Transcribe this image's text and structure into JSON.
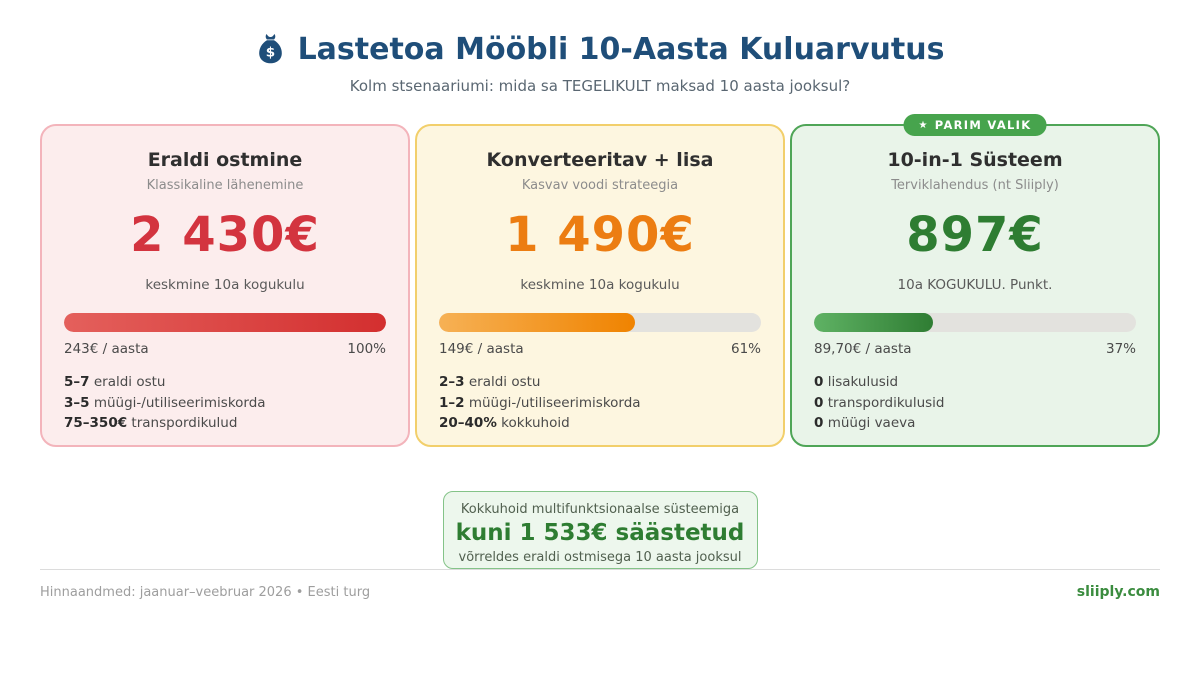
{
  "header": {
    "icon": "money-bag",
    "title": "Lastetoa Mööbli 10-Aasta Kuluarvutus",
    "subtitle": "Kolm stsenaariumi: mida sa TEGELIKULT maksad 10 aasta jooksul?"
  },
  "colors": {
    "title_navy": "#1f4e79",
    "red_accent": "#d3343f",
    "orange_accent": "#ec7d12",
    "green_accent": "#2e7d32",
    "badge_green": "#47a44d",
    "bar_track_gray": "#e3e2de"
  },
  "cards": [
    {
      "id": "eraldi-ostmine",
      "title": "Eraldi ostmine",
      "subtitle": "Klassikaline lähenemine",
      "price": "2 430€",
      "price_caption": "keskmine 10a kogukulu",
      "bar_percent": 100,
      "per_year": "243€ / aasta",
      "percent_label": "100%",
      "details": [
        {
          "strong": "5–7",
          "text": " eraldi ostu"
        },
        {
          "strong": "3–5",
          "text": " müügi-/utiliseerimiskorda"
        },
        {
          "strong": "75–350€",
          "text": " transpordikulud"
        }
      ]
    },
    {
      "id": "konverteeritav-lisa",
      "title": "Konverteeritav + lisa",
      "subtitle": "Kasvav voodi strateegia",
      "price": "1 490€",
      "price_caption": "keskmine 10a kogukulu",
      "bar_percent": 61,
      "per_year": "149€ / aasta",
      "percent_label": "61%",
      "details": [
        {
          "strong": "2–3",
          "text": " eraldi ostu"
        },
        {
          "strong": "1–2",
          "text": " müügi-/utiliseerimiskorda"
        },
        {
          "strong": "20–40%",
          "text": " kokkuhoid"
        }
      ]
    },
    {
      "id": "10-in-1-susteem",
      "badge": {
        "icon": "★",
        "label": "PARIM VALIK"
      },
      "title": "10-in-1 Süsteem",
      "subtitle": "Terviklahendus (nt Sliiply)",
      "price": "897€",
      "price_caption": "10a KOGUKULU. Punkt.",
      "bar_percent": 37,
      "per_year": "89,70€ / aasta",
      "percent_label": "37%",
      "details": [
        {
          "strong": "0",
          "text": " lisakulusid"
        },
        {
          "strong": "0",
          "text": " transpordikulusid"
        },
        {
          "strong": "0",
          "text": " müügi vaeva"
        }
      ]
    }
  ],
  "savings": {
    "line1": "Kokkuhoid multifunktsionaalse süsteemiga",
    "highlight": "kuni 1 533€ säästetud",
    "line2": "võrreldes eraldi ostmisega 10 aasta jooksul"
  },
  "footer": {
    "left": "Hinnaandmed: jaanuar–veebruar 2026 • Eesti turg",
    "right": "sliiply.com"
  },
  "chart_data": {
    "type": "bar",
    "title": "Lastetoa Mööbli 10-Aasta Kuluarvutus",
    "categories": [
      "Eraldi ostmine",
      "Konverteeritav + lisa",
      "10-in-1 Süsteem"
    ],
    "values": [
      2430,
      1490,
      897
    ],
    "percent_of_baseline": [
      100,
      61,
      37
    ],
    "per_year_eur": [
      243,
      149,
      89.7
    ],
    "savings_vs_baseline_eur": 1533,
    "ylabel": "10a kogukulu (€)",
    "legend_position": "none",
    "grid": false
  }
}
